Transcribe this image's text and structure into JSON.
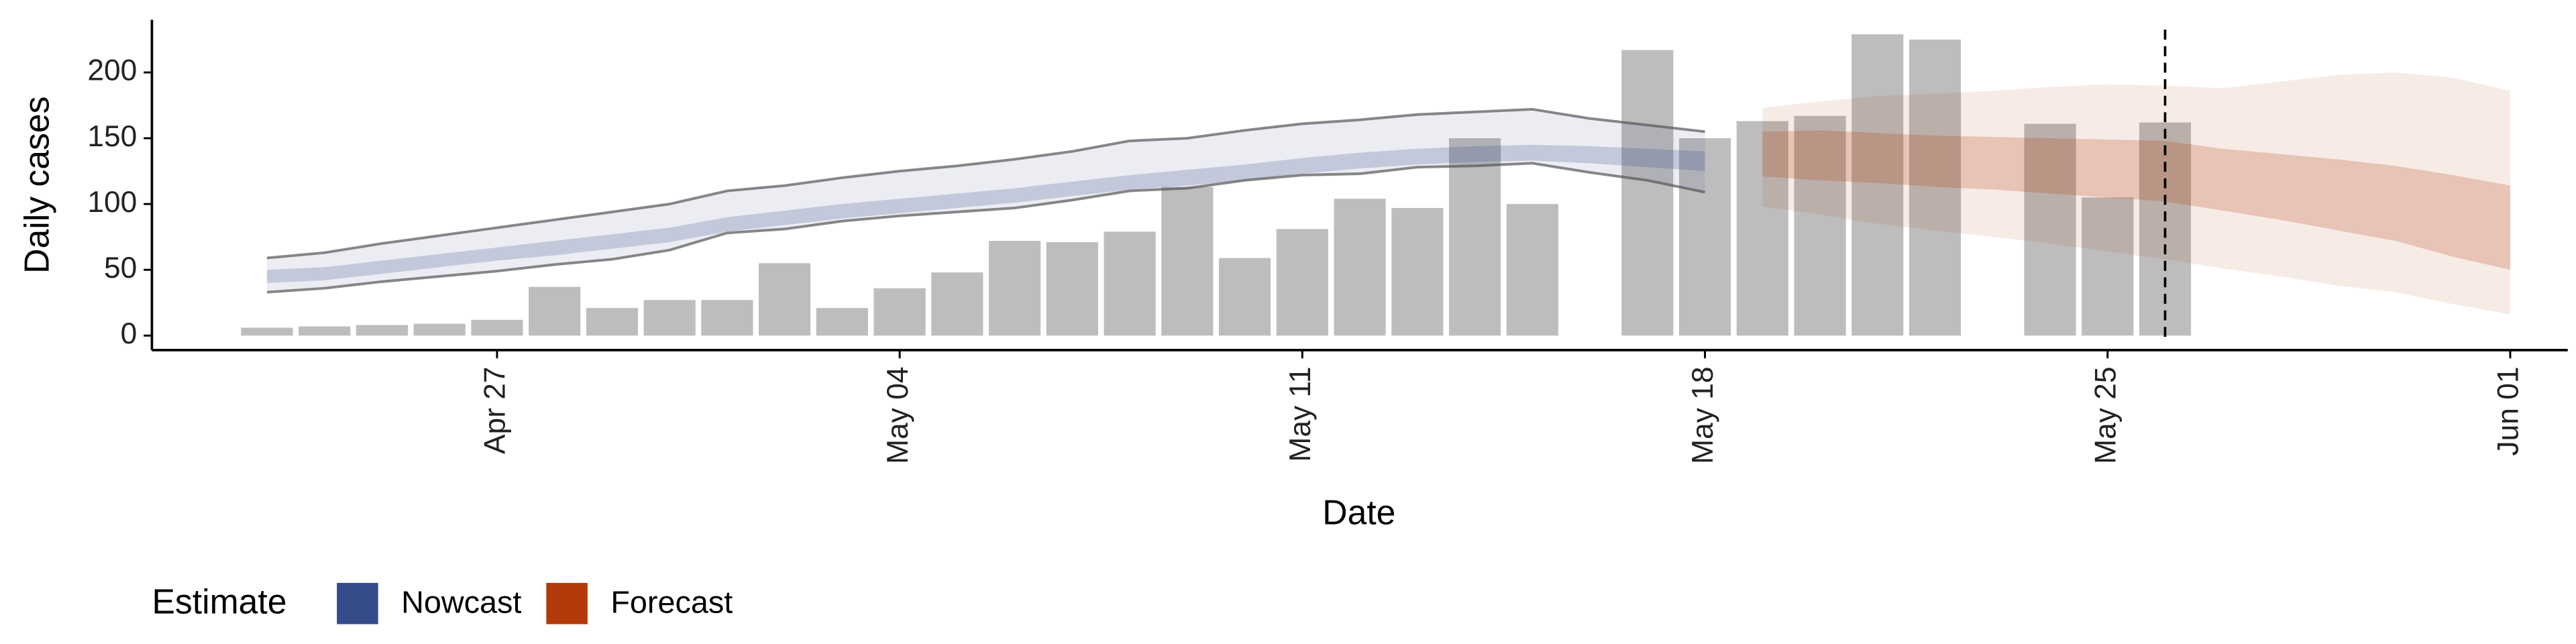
{
  "chart_data": {
    "type": "bar",
    "x_label": "Date",
    "y_label": "Daily cases",
    "x": [
      "Apr 23",
      "Apr 24",
      "Apr 25",
      "Apr 26",
      "Apr 27",
      "Apr 28",
      "Apr 29",
      "Apr 30",
      "May 01",
      "May 02",
      "May 03",
      "May 04",
      "May 05",
      "May 06",
      "May 07",
      "May 08",
      "May 09",
      "May 10",
      "May 11",
      "May 12",
      "May 13",
      "May 14",
      "May 15",
      "May 16",
      "May 17",
      "May 18",
      "May 19",
      "May 20",
      "May 21",
      "May 22",
      "May 23",
      "May 24",
      "May 25",
      "May 26",
      "May 27",
      "May 28",
      "May 29",
      "May 30",
      "May 31",
      "Jun 01"
    ],
    "bars": {
      "color": "#bdbdbd",
      "values": [
        6,
        7,
        8,
        9,
        12,
        37,
        21,
        27,
        27,
        55,
        21,
        36,
        48,
        72,
        71,
        79,
        113,
        59,
        81,
        104,
        97,
        150,
        100,
        null,
        217,
        150,
        163,
        167,
        229,
        225,
        null,
        161,
        105,
        162,
        null,
        null,
        null,
        null,
        null,
        null
      ]
    },
    "series": [
      {
        "name": "Nowcast",
        "color": "#364b8a",
        "upper90": [
          59,
          63,
          70,
          76,
          82,
          88,
          94,
          100,
          110,
          114,
          120,
          125,
          129,
          134,
          140,
          148,
          150,
          156,
          161,
          164,
          168,
          170,
          172,
          165,
          160,
          155,
          null,
          null,
          null,
          null,
          null,
          null,
          null,
          null,
          null,
          null,
          null,
          null,
          null,
          null
        ],
        "lower90": [
          33,
          36,
          41,
          45,
          49,
          54,
          58,
          65,
          78,
          81,
          87,
          91,
          94,
          97,
          103,
          110,
          112,
          118,
          122,
          123,
          128,
          129,
          131,
          124,
          118,
          109,
          null,
          null,
          null,
          null,
          null,
          null,
          null,
          null,
          null,
          null,
          null,
          null,
          null,
          null
        ],
        "upper50": [
          50,
          52,
          57,
          62,
          67,
          72,
          77,
          82,
          90,
          95,
          100,
          104,
          108,
          112,
          117,
          122,
          126,
          130,
          135,
          139,
          142,
          144,
          145,
          144,
          142,
          140,
          null,
          null,
          null,
          null,
          null,
          null,
          null,
          null,
          null,
          null,
          null,
          null,
          null,
          null
        ],
        "lower50": [
          40,
          42,
          47,
          52,
          57,
          61,
          66,
          71,
          79,
          84,
          89,
          93,
          97,
          101,
          106,
          111,
          114,
          118,
          123,
          127,
          130,
          132,
          133,
          131,
          128,
          125,
          null,
          null,
          null,
          null,
          null,
          null,
          null,
          null,
          null,
          null,
          null,
          null,
          null,
          null
        ]
      },
      {
        "name": "Forecast",
        "color": "#b33a0b",
        "upper90": [
          null,
          null,
          null,
          null,
          null,
          null,
          null,
          null,
          null,
          null,
          null,
          null,
          null,
          null,
          null,
          null,
          null,
          null,
          null,
          null,
          null,
          null,
          null,
          null,
          null,
          null,
          173,
          178,
          182,
          184,
          186,
          189,
          191,
          190,
          188,
          193,
          198,
          200,
          196,
          186
        ],
        "lower90": [
          null,
          null,
          null,
          null,
          null,
          null,
          null,
          null,
          null,
          null,
          null,
          null,
          null,
          null,
          null,
          null,
          null,
          null,
          null,
          null,
          null,
          null,
          null,
          null,
          null,
          null,
          98,
          92,
          85,
          80,
          75,
          70,
          64,
          58,
          51,
          45,
          38,
          33,
          24,
          16
        ],
        "upper50": [
          null,
          null,
          null,
          null,
          null,
          null,
          null,
          null,
          null,
          null,
          null,
          null,
          null,
          null,
          null,
          null,
          null,
          null,
          null,
          null,
          null,
          null,
          null,
          null,
          null,
          null,
          155,
          156,
          154,
          152,
          151,
          150,
          149,
          148,
          142,
          138,
          134,
          129,
          122,
          114
        ],
        "lower50": [
          null,
          null,
          null,
          null,
          null,
          null,
          null,
          null,
          null,
          null,
          null,
          null,
          null,
          null,
          null,
          null,
          null,
          null,
          null,
          null,
          null,
          null,
          null,
          null,
          null,
          null,
          121,
          118,
          116,
          113,
          111,
          108,
          105,
          102,
          95,
          88,
          80,
          72,
          60,
          50
        ]
      }
    ],
    "vline": "May 26",
    "legend_title": "Estimate",
    "xlim": [
      "Apr 21",
      "Jun 02"
    ],
    "xticks": [
      "Apr 27",
      "May 04",
      "May 11",
      "May 18",
      "May 25",
      "Jun 01"
    ],
    "ylim": [
      -11,
      240
    ],
    "yticks": [
      0,
      50,
      100,
      150,
      200
    ]
  }
}
